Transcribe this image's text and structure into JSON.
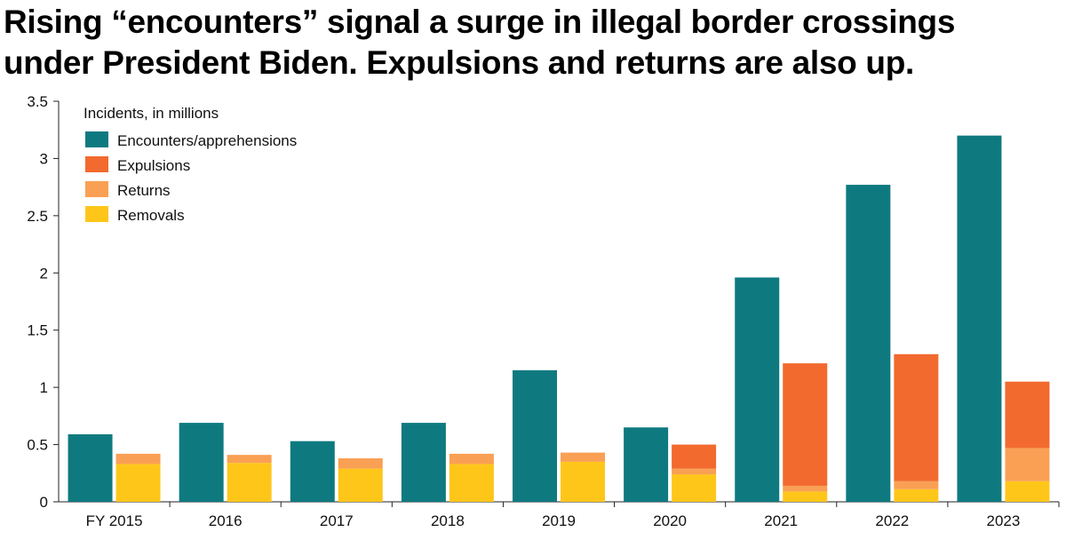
{
  "title_lines": [
    "Rising “encounters” signal a surge in illegal border crossings",
    "under President Biden. Expulsions and returns are also up."
  ],
  "chart_data": {
    "type": "bar",
    "title": "Rising “encounters” signal a surge in illegal border crossings under President Biden. Expulsions and returns are also up.",
    "legend_title": "Incidents, in millions",
    "legend_position": "top-left",
    "categories": [
      "FY 2015",
      "2016",
      "2017",
      "2018",
      "2019",
      "2020",
      "2021",
      "2022",
      "2023"
    ],
    "ylim": [
      0,
      3.5
    ],
    "yticks": [
      0,
      0.5,
      1,
      1.5,
      2,
      2.5,
      3,
      3.5
    ],
    "ytick_labels": [
      "0",
      "0.5",
      "1",
      "1.5",
      "2",
      "2.5",
      "3",
      "3.5"
    ],
    "grid": false,
    "bar_groups": [
      {
        "bar": "left",
        "stacked": false,
        "series": [
          "Encounters/apprehensions"
        ]
      },
      {
        "bar": "right",
        "stacked": true,
        "stack_order": [
          "Removals",
          "Returns",
          "Expulsions"
        ]
      }
    ],
    "series": [
      {
        "name": "Encounters/apprehensions",
        "color": "#0e7a80",
        "values": [
          0.59,
          0.69,
          0.53,
          0.69,
          1.15,
          0.65,
          1.96,
          2.77,
          3.2
        ]
      },
      {
        "name": "Expulsions",
        "color": "#f26a2e",
        "values": [
          0,
          0,
          0,
          0,
          0,
          0.21,
          1.07,
          1.11,
          0.58
        ]
      },
      {
        "name": "Returns",
        "color": "#f9a054",
        "values": [
          0.09,
          0.07,
          0.09,
          0.09,
          0.08,
          0.05,
          0.05,
          0.07,
          0.29
        ]
      },
      {
        "name": "Removals",
        "color": "#ffc61a",
        "values": [
          0.33,
          0.34,
          0.29,
          0.33,
          0.35,
          0.24,
          0.09,
          0.11,
          0.18
        ]
      }
    ]
  }
}
